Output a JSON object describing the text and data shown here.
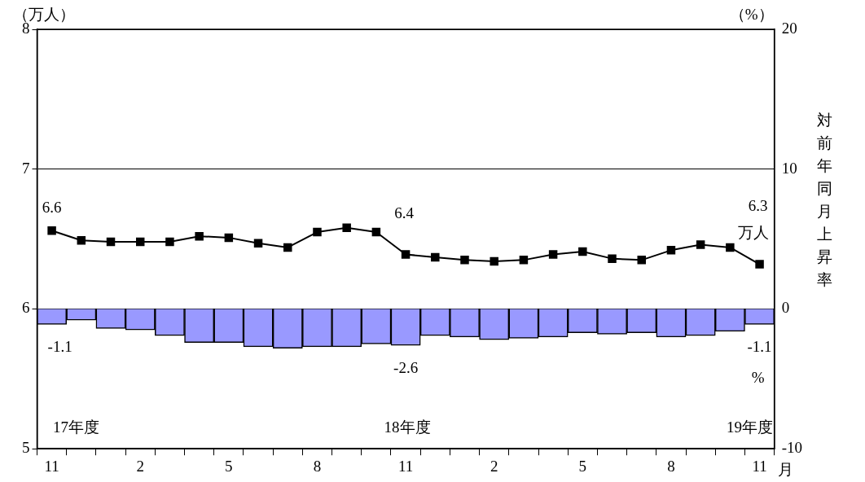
{
  "chart_data": {
    "type": "line",
    "ylabel": "（万人）",
    "y2label": "対前年同月上昇率",
    "xlabel": "月",
    "categories": [
      "11",
      null,
      null,
      "2",
      null,
      null,
      "5",
      null,
      null,
      "8",
      null,
      null,
      "11",
      null,
      null,
      "2",
      null,
      null,
      "5",
      null,
      null,
      "8",
      null,
      null,
      "11"
    ],
    "series": [
      {
        "type": "bar",
        "axis": "y2",
        "color": "#9999ff",
        "values": [
          -1.1,
          -0.8,
          -1.4,
          -1.5,
          -1.9,
          -2.4,
          -2.4,
          -2.7,
          -2.8,
          -2.7,
          -2.7,
          -2.5,
          -2.6,
          -1.9,
          -2.0,
          -2.2,
          -2.1,
          -2.0,
          -1.7,
          -1.8,
          -1.7,
          -2.0,
          -1.9,
          -1.6,
          -1.1
        ],
        "value_labels": [
          "-1.1",
          null,
          null,
          null,
          null,
          null,
          null,
          null,
          null,
          null,
          null,
          null,
          "-2.6",
          null,
          null,
          null,
          null,
          null,
          null,
          null,
          null,
          null,
          null,
          null,
          "-1.1"
        ]
      },
      {
        "axis": "y",
        "color": "#000000",
        "values": [
          6.56,
          6.49,
          6.48,
          6.48,
          6.48,
          6.52,
          6.51,
          6.47,
          6.44,
          6.55,
          6.58,
          6.55,
          6.39,
          6.37,
          6.35,
          6.34,
          6.35,
          6.39,
          6.41,
          6.36,
          6.35,
          6.42,
          6.46,
          6.44,
          6.32
        ],
        "value_labels": [
          "6.6",
          null,
          null,
          null,
          null,
          null,
          null,
          null,
          null,
          null,
          null,
          null,
          "6.4",
          null,
          null,
          null,
          null,
          null,
          null,
          null,
          null,
          null,
          null,
          null,
          "6.3"
        ]
      }
    ],
    "ylim": [
      5,
      8
    ],
    "yticks": [
      5,
      6,
      7,
      8
    ],
    "y2lim": [
      -10,
      20
    ],
    "y2ticks": [
      -10,
      0,
      10,
      20
    ],
    "grid": "y",
    "legend": false,
    "marker": "square",
    "line_style": "solid",
    "annotations": [
      "（%）",
      "17年度",
      "18年度",
      "19年度",
      "万人",
      "%"
    ]
  }
}
